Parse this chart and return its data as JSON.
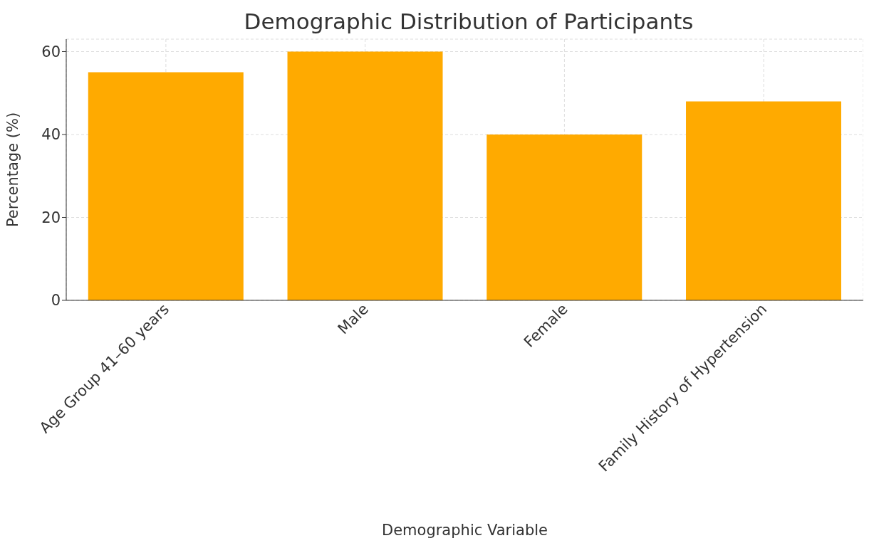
{
  "chart_data": {
    "type": "bar",
    "title": "Demographic Distribution of Participants",
    "xlabel": "Demographic Variable",
    "ylabel": "Percentage (%)",
    "categories": [
      "Age Group 41–60 years",
      "Male",
      "Female",
      "Family History of Hypertension"
    ],
    "values": [
      55,
      60,
      40,
      48
    ],
    "color": "#ffaa00",
    "ylim": [
      0,
      63
    ],
    "yticks": [
      0,
      20,
      40,
      60
    ],
    "grid": true
  }
}
